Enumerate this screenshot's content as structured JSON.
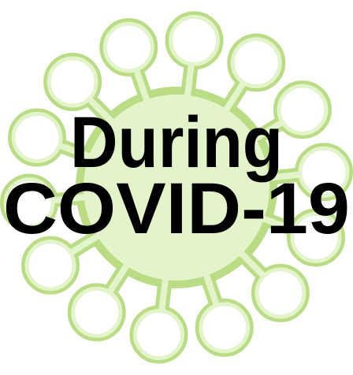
{
  "text": {
    "line1": "During",
    "line2": "COVID-19"
  }
}
